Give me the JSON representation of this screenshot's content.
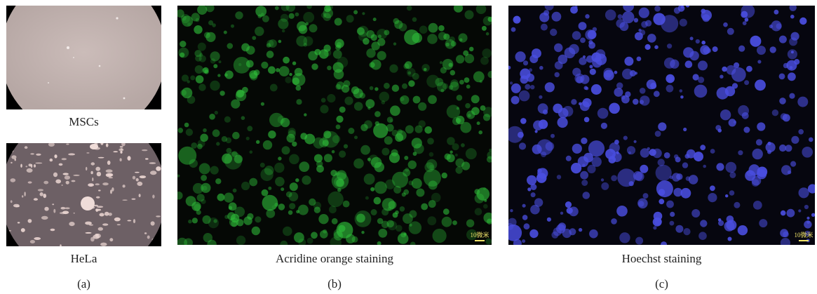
{
  "panel_a": {
    "label": "(a)",
    "top_caption": "MSCs",
    "bottom_caption": "HeLa"
  },
  "panel_b": {
    "label": "(b)",
    "caption": "Acridine orange staining",
    "scale_text": "10微米",
    "stain_color": "#2fbf3a"
  },
  "panel_c": {
    "label": "(c)",
    "caption": "Hoechst staining",
    "scale_text": "10微米",
    "stain_color": "#4a4ee0"
  }
}
